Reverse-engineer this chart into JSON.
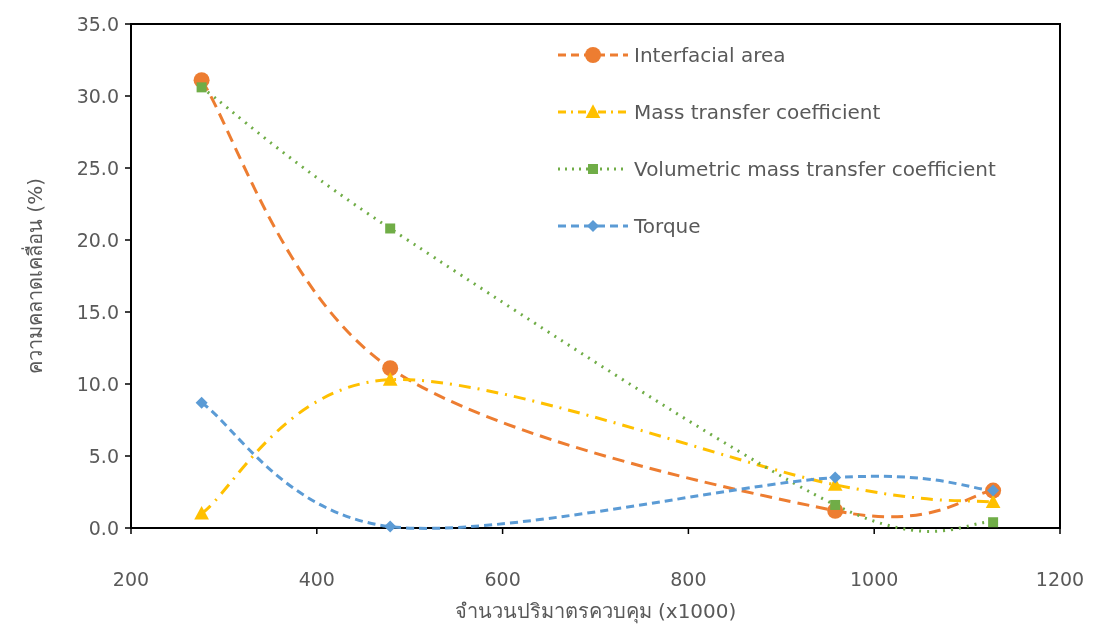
{
  "chart_data": {
    "type": "line",
    "xlabel": "จำนวนปริมาตรควบคุม (x1000)",
    "ylabel": "ความคลาดเคลื่อน (%)",
    "x": [
      276,
      479,
      958,
      1128
    ],
    "series": [
      {
        "name": "Interfacial area",
        "color": "#ed7d31",
        "marker": "circle",
        "line_style": "dashed",
        "values": [
          31.1,
          11.1,
          1.2,
          2.6
        ]
      },
      {
        "name": "Mass transfer coefficient",
        "color": "#ffc000",
        "marker": "triangle",
        "line_style": "dashdot",
        "values": [
          1.0,
          10.3,
          3.0,
          1.8
        ]
      },
      {
        "name": "Volumetric mass transfer coefficient",
        "color": "#70ad47",
        "marker": "square",
        "line_style": "dotted",
        "values": [
          30.6,
          20.8,
          1.6,
          0.4
        ]
      },
      {
        "name": "Torque",
        "color": "#5b9bd5",
        "marker": "diamond",
        "line_style": "dashed",
        "values": [
          8.7,
          0.1,
          3.5,
          2.6
        ]
      }
    ],
    "xlim": [
      200,
      1200
    ],
    "xticks": [
      200,
      400,
      600,
      800,
      1000,
      1200
    ],
    "ylim": [
      0,
      35
    ],
    "yticks": [
      {
        "value": 0,
        "label": "0.0"
      },
      {
        "value": 5,
        "label": "5.0"
      },
      {
        "value": 10,
        "label": "10.0"
      },
      {
        "value": 15,
        "label": "15.0"
      },
      {
        "value": 20,
        "label": "20.0"
      },
      {
        "value": 25,
        "label": "25.0"
      },
      {
        "value": 30,
        "label": "30.0"
      },
      {
        "value": 35,
        "label": "35.0"
      }
    ],
    "grid": false,
    "legend": "top right"
  }
}
